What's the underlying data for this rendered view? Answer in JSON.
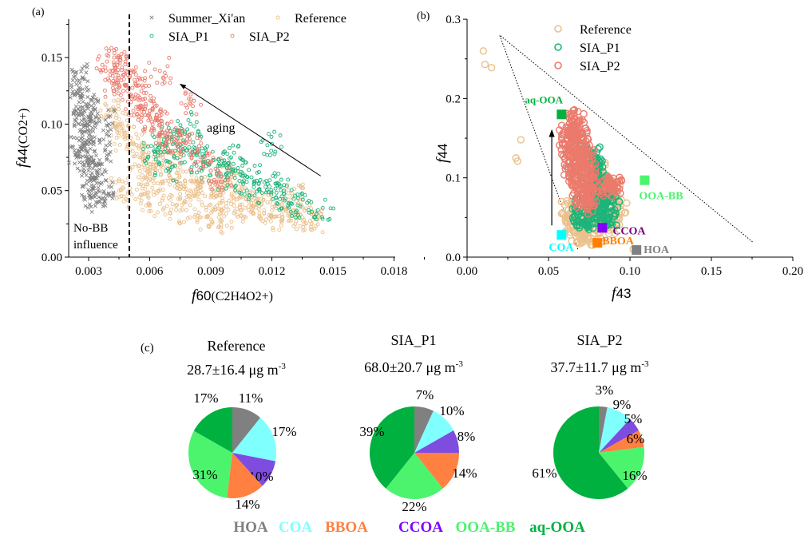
{
  "chart_data": [
    {
      "panel": "(a)",
      "type": "scatter",
      "xlabel": {
        "f": "f",
        "sub": "60",
        "rest": "(C2H4O2+)"
      },
      "ylabel": {
        "f": "f",
        "sub": "44",
        "rest": "(CO2+)"
      },
      "xlim": [
        0.002,
        0.018
      ],
      "ylim": [
        0,
        0.178
      ],
      "xticks": [
        "0.003",
        "0.006",
        "0.009",
        "0.012",
        "0.015",
        "0.018"
      ],
      "yticks": [
        "0.00",
        "0.05",
        "0.10",
        "0.15"
      ],
      "legend": "top",
      "grid": false,
      "annotations": {
        "aging": "aging",
        "no_bb_1": "No-BB",
        "no_bb_2": "influence",
        "threshold_x": 0.005,
        "arrow_from": [
          0.0144,
          0.061
        ],
        "arrow_to": [
          0.0075,
          0.13
        ]
      },
      "series": [
        {
          "name": "Summer_Xi'an",
          "color": "#808080",
          "marker": "x",
          "points": [
            [
              0.0024,
              0.13
            ],
            [
              0.0026,
              0.12
            ],
            [
              0.0028,
              0.11
            ],
            [
              0.0025,
              0.1
            ],
            [
              0.003,
              0.105
            ],
            [
              0.0032,
              0.12
            ],
            [
              0.0027,
              0.09
            ],
            [
              0.0029,
              0.085
            ],
            [
              0.0031,
              0.095
            ],
            [
              0.0033,
              0.08
            ],
            [
              0.0023,
              0.08
            ],
            [
              0.0026,
              0.075
            ],
            [
              0.003,
              0.07
            ],
            [
              0.0034,
              0.065
            ],
            [
              0.0032,
              0.06
            ],
            [
              0.0029,
              0.055
            ],
            [
              0.0036,
              0.055
            ],
            [
              0.0035,
              0.045
            ],
            [
              0.0031,
              0.045
            ],
            [
              0.004,
              0.048
            ],
            [
              0.0038,
              0.08
            ],
            [
              0.004,
              0.1
            ],
            [
              0.0027,
              0.135
            ],
            [
              0.0024,
              0.11
            ],
            [
              0.0033,
              0.1
            ]
          ]
        },
        {
          "name": "Reference",
          "color": "#EBC08C",
          "marker": "o",
          "points": [
            [
              0.004,
              0.11
            ],
            [
              0.0045,
              0.1
            ],
            [
              0.0048,
              0.09
            ],
            [
              0.0052,
              0.085
            ],
            [
              0.0055,
              0.075
            ],
            [
              0.006,
              0.07
            ],
            [
              0.0058,
              0.06
            ],
            [
              0.0065,
              0.065
            ],
            [
              0.007,
              0.06
            ],
            [
              0.0075,
              0.055
            ],
            [
              0.008,
              0.05
            ],
            [
              0.0085,
              0.055
            ],
            [
              0.009,
              0.045
            ],
            [
              0.0095,
              0.05
            ],
            [
              0.01,
              0.04
            ],
            [
              0.0105,
              0.045
            ],
            [
              0.011,
              0.035
            ],
            [
              0.0115,
              0.04
            ],
            [
              0.012,
              0.035
            ],
            [
              0.0125,
              0.03
            ],
            [
              0.013,
              0.033
            ],
            [
              0.0135,
              0.03
            ],
            [
              0.014,
              0.028
            ],
            [
              0.0065,
              0.04
            ],
            [
              0.0075,
              0.035
            ],
            [
              0.0085,
              0.03
            ],
            [
              0.0095,
              0.028
            ],
            [
              0.0055,
              0.045
            ],
            [
              0.0045,
              0.05
            ],
            [
              0.007,
              0.08
            ],
            [
              0.01,
              0.06
            ],
            [
              0.013,
              0.045
            ]
          ]
        },
        {
          "name": "SIA_P1",
          "color": "#1DB47A",
          "marker": "o",
          "points": [
            [
              0.0062,
              0.08
            ],
            [
              0.0066,
              0.085
            ],
            [
              0.007,
              0.09
            ],
            [
              0.0074,
              0.095
            ],
            [
              0.0072,
              0.075
            ],
            [
              0.0078,
              0.08
            ],
            [
              0.0082,
              0.07
            ],
            [
              0.0086,
              0.075
            ],
            [
              0.009,
              0.065
            ],
            [
              0.0094,
              0.07
            ],
            [
              0.0098,
              0.06
            ],
            [
              0.0102,
              0.065
            ],
            [
              0.0106,
              0.055
            ],
            [
              0.011,
              0.06
            ],
            [
              0.0114,
              0.05
            ],
            [
              0.0118,
              0.055
            ],
            [
              0.0122,
              0.045
            ],
            [
              0.0126,
              0.05
            ],
            [
              0.013,
              0.04
            ],
            [
              0.0134,
              0.038
            ],
            [
              0.0145,
              0.037
            ],
            [
              0.012,
              0.085
            ],
            [
              0.008,
              0.1
            ],
            [
              0.0068,
              0.065
            ],
            [
              0.01,
              0.075
            ]
          ]
        },
        {
          "name": "SIA_P2",
          "color": "#EB7A6C",
          "marker": "o",
          "points": [
            [
              0.0039,
              0.147
            ],
            [
              0.0042,
              0.14
            ],
            [
              0.0045,
              0.15
            ],
            [
              0.0048,
              0.145
            ],
            [
              0.0043,
              0.13
            ],
            [
              0.0047,
              0.125
            ],
            [
              0.005,
              0.135
            ],
            [
              0.0053,
              0.13
            ],
            [
              0.0055,
              0.12
            ],
            [
              0.0058,
              0.115
            ],
            [
              0.0052,
              0.11
            ],
            [
              0.0056,
              0.105
            ],
            [
              0.006,
              0.11
            ],
            [
              0.0063,
              0.105
            ],
            [
              0.0066,
              0.1
            ],
            [
              0.007,
              0.095
            ],
            [
              0.0073,
              0.09
            ],
            [
              0.0068,
              0.085
            ],
            [
              0.0076,
              0.085
            ],
            [
              0.008,
              0.08
            ],
            [
              0.0085,
              0.075
            ],
            [
              0.009,
              0.065
            ],
            [
              0.0095,
              0.06
            ],
            [
              0.008,
              0.115
            ],
            [
              0.0065,
              0.14
            ]
          ]
        }
      ]
    },
    {
      "panel": "(b)",
      "type": "scatter",
      "xlabel": {
        "f": "f",
        "sub": "43"
      },
      "ylabel": {
        "f": "f",
        "sub": "44"
      },
      "xlim": [
        0,
        0.2
      ],
      "ylim": [
        0,
        0.3
      ],
      "xticks": [
        "0.00",
        "0.05",
        "0.10",
        "0.15",
        "0.20"
      ],
      "yticks": [
        "0.0",
        "0.1",
        "0.2",
        "0.3"
      ],
      "legend": "top-center",
      "grid": false,
      "triangle": [
        [
          0.02,
          0.28
        ],
        [
          0.068,
          0.01
        ],
        [
          0.176,
          0.018
        ]
      ],
      "arrow_from": [
        0.052,
        0.04
      ],
      "arrow_to": [
        0.052,
        0.16
      ],
      "factors": [
        {
          "name": "aq-OOA",
          "x": 0.058,
          "y": 0.18,
          "color": "#00B140"
        },
        {
          "name": "OOA-BB",
          "x": 0.109,
          "y": 0.097,
          "color": "#4CF46E"
        },
        {
          "name": "CCOA",
          "x": 0.083,
          "y": 0.037,
          "color": "#8000FF",
          "label_color": "#7B007B"
        },
        {
          "name": "COA",
          "x": 0.058,
          "y": 0.028,
          "color": "#00FFFF"
        },
        {
          "name": "BBOA",
          "x": 0.08,
          "y": 0.018,
          "color": "#FF7F00"
        },
        {
          "name": "HOA",
          "x": 0.104,
          "y": 0.009,
          "color": "#808080"
        }
      ],
      "series": [
        {
          "name": "Reference",
          "color": "#EBC08C",
          "points": [
            [
              0.01,
              0.26
            ],
            [
              0.011,
              0.243
            ],
            [
              0.015,
              0.239
            ],
            [
              0.033,
              0.148
            ],
            [
              0.03,
              0.125
            ],
            [
              0.031,
              0.121
            ],
            [
              0.06,
              0.123
            ],
            [
              0.058,
              0.07
            ],
            [
              0.062,
              0.068
            ],
            [
              0.102,
              0.01
            ],
            [
              0.065,
              0.04
            ],
            [
              0.068,
              0.03
            ],
            [
              0.072,
              0.025
            ],
            [
              0.078,
              0.03
            ],
            [
              0.085,
              0.04
            ],
            [
              0.09,
              0.05
            ],
            [
              0.092,
              0.065
            ],
            [
              0.088,
              0.08
            ],
            [
              0.085,
              0.095
            ],
            [
              0.08,
              0.11
            ],
            [
              0.07,
              0.09
            ],
            [
              0.066,
              0.06
            ],
            [
              0.075,
              0.05
            ],
            [
              0.082,
              0.06
            ],
            [
              0.064,
              0.05
            ]
          ]
        },
        {
          "name": "SIA_P1",
          "color": "#1DB47A",
          "points": [
            [
              0.07,
              0.05
            ],
            [
              0.074,
              0.045
            ],
            [
              0.078,
              0.05
            ],
            [
              0.082,
              0.045
            ],
            [
              0.086,
              0.05
            ],
            [
              0.084,
              0.06
            ],
            [
              0.08,
              0.07
            ],
            [
              0.083,
              0.08
            ],
            [
              0.082,
              0.09
            ],
            [
              0.08,
              0.1
            ],
            [
              0.078,
              0.11
            ],
            [
              0.077,
              0.12
            ],
            [
              0.076,
              0.13
            ],
            [
              0.072,
              0.065
            ],
            [
              0.088,
              0.07
            ]
          ]
        },
        {
          "name": "SIA_P2",
          "color": "#EB7A6C",
          "points": [
            [
              0.066,
              0.175
            ],
            [
              0.064,
              0.165
            ],
            [
              0.068,
              0.16
            ],
            [
              0.062,
              0.15
            ],
            [
              0.066,
              0.145
            ],
            [
              0.07,
              0.15
            ],
            [
              0.063,
              0.135
            ],
            [
              0.068,
              0.13
            ],
            [
              0.072,
              0.13
            ],
            [
              0.065,
              0.12
            ],
            [
              0.07,
              0.115
            ],
            [
              0.074,
              0.11
            ],
            [
              0.067,
              0.1
            ],
            [
              0.072,
              0.095
            ],
            [
              0.076,
              0.09
            ],
            [
              0.07,
              0.08
            ],
            [
              0.074,
              0.075
            ],
            [
              0.072,
              0.065
            ],
            [
              0.085,
              0.09
            ],
            [
              0.09,
              0.09
            ],
            [
              0.088,
              0.085
            ],
            [
              0.064,
              0.11
            ]
          ]
        }
      ]
    },
    {
      "panel": "(c)",
      "type": "pie",
      "categories": [
        "HOA",
        "COA",
        "CCOA",
        "BBOA",
        "OOA-BB",
        "aq-OOA"
      ],
      "colors": [
        "#808080",
        "#80FFFF",
        "#7F4CE0",
        "#FF8040",
        "#4CF46E",
        "#00B140"
      ],
      "pies": [
        {
          "title": "Reference",
          "mass": "28.7±16.4 μg m",
          "exp": "-3",
          "values": [
            11,
            17,
            10,
            14,
            31,
            17
          ],
          "labels": [
            "11%",
            "17%",
            "10%",
            "14%",
            "31%",
            "17%"
          ]
        },
        {
          "title": "SIA_P1",
          "mass": "68.0±20.7 μg m",
          "exp": "-3",
          "values": [
            7,
            10,
            8,
            14,
            22,
            39
          ],
          "labels": [
            "7%",
            "10%",
            "8%",
            "14%",
            "22%",
            "39%"
          ]
        },
        {
          "title": "SIA_P2",
          "mass": "37.7±11.7 μg m",
          "exp": "-3",
          "values": [
            3,
            9,
            5,
            6,
            16,
            61
          ],
          "labels": [
            "3%",
            "9%",
            "5%",
            "6%",
            "16%",
            "61%"
          ]
        }
      ],
      "legend": [
        {
          "name": "HOA",
          "color": "#808080"
        },
        {
          "name": "COA",
          "color": "#80FFFF"
        },
        {
          "name": "BBOA",
          "color": "#FF8040"
        },
        {
          "name": "CCOA",
          "color": "#8000FF"
        },
        {
          "name": "OOA-BB",
          "color": "#4CF46E"
        },
        {
          "name": "aq-OOA",
          "color": "#00B140"
        }
      ]
    }
  ]
}
